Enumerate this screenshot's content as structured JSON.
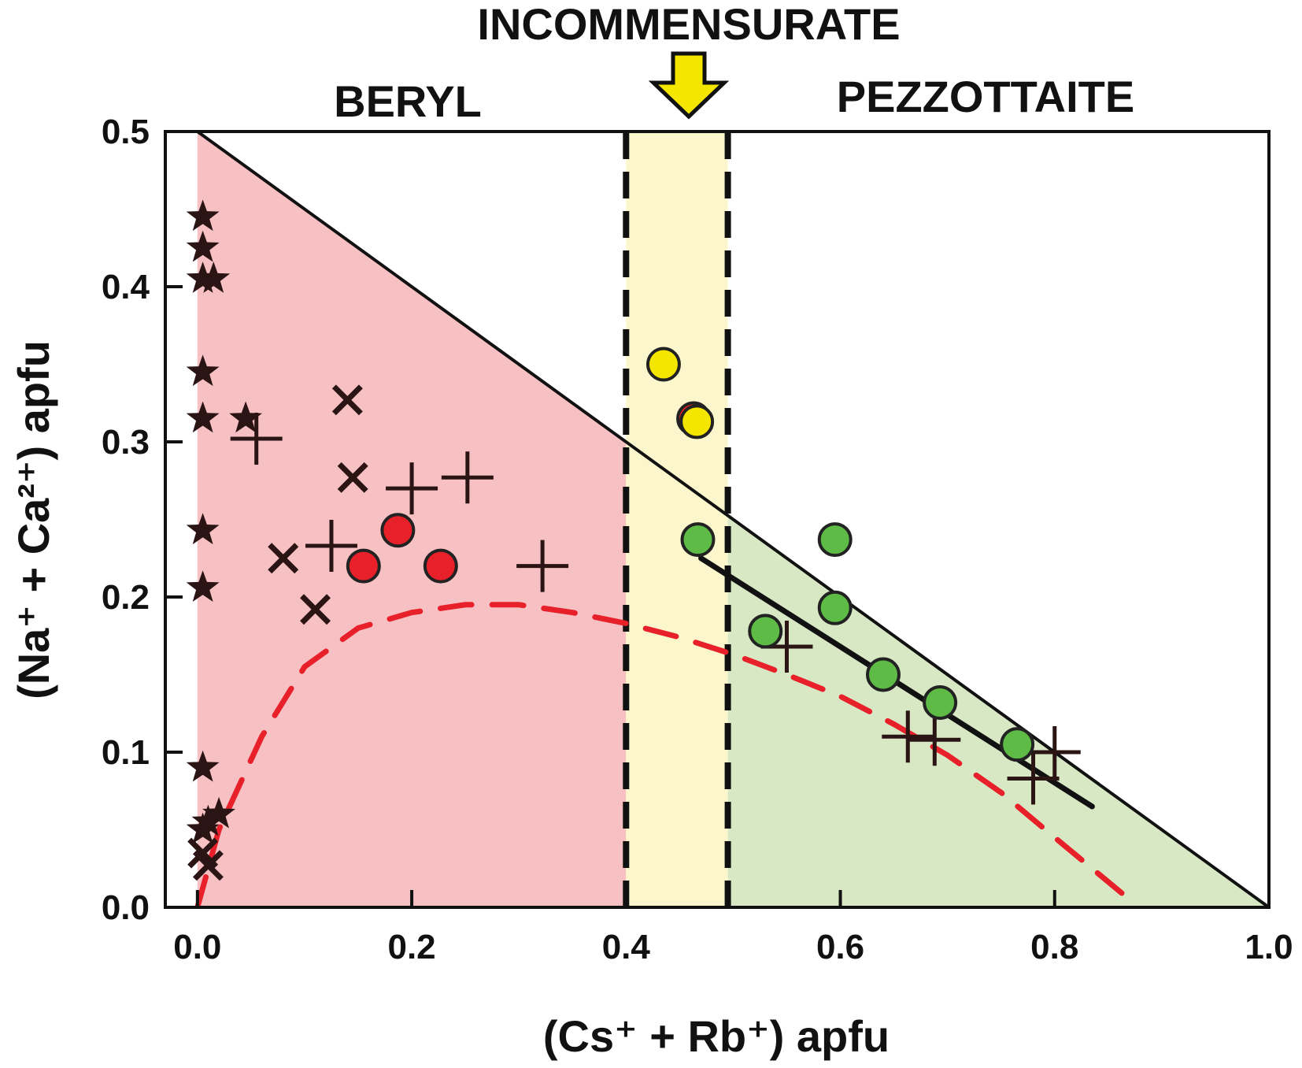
{
  "chart_data": {
    "type": "scatter",
    "title": "",
    "xlabel": "(Cs⁺ + Rb⁺)  apfu",
    "ylabel": "(Na⁺ + Ca²⁺)  apfu",
    "xlim": [
      -0.03,
      1.0
    ],
    "ylim": [
      0.0,
      0.5
    ],
    "x_ticks": [
      "0.0",
      "0.2",
      "0.4",
      "0.6",
      "0.8",
      "1.0"
    ],
    "y_ticks": [
      "0.0",
      "0.1",
      "0.2",
      "0.3",
      "0.4",
      "0.5"
    ],
    "grid": false,
    "regions": [
      {
        "name": "BERYL",
        "x_range": [
          0.0,
          0.4
        ],
        "color": "#f7c0c3"
      },
      {
        "name": "INCOMMENSURATE",
        "x_range": [
          0.4,
          0.495
        ],
        "color": "#fbf6cc"
      },
      {
        "name": "PEZZOTTAITE",
        "x_range": [
          0.495,
          1.0
        ],
        "color": "#d8e8c4"
      }
    ],
    "colors": {
      "beryl_fill": "#f7c0c3",
      "incommensurate_fill": "#fbf6cc",
      "pezzottaite_fill": "#d8e8c4",
      "red_points": "#e8202a",
      "yellow_points": "#f5e600",
      "green_points": "#5dbb46",
      "dashed_curve": "#e8202a",
      "marker_dark": "#2a1414"
    },
    "lines": [
      {
        "kind": "boundary",
        "style": "solid",
        "points": [
          [
            0.0,
            0.5
          ],
          [
            1.0,
            0.0
          ]
        ]
      },
      {
        "kind": "trend",
        "style": "solid-thick",
        "points": [
          [
            0.47,
            0.225
          ],
          [
            0.835,
            0.065
          ]
        ]
      },
      {
        "kind": "boundary",
        "style": "dashed",
        "points": [
          [
            0.4,
            0.0
          ],
          [
            0.4,
            0.5
          ]
        ]
      },
      {
        "kind": "boundary",
        "style": "dashed",
        "points": [
          [
            0.495,
            0.0
          ],
          [
            0.495,
            0.5
          ]
        ]
      },
      {
        "kind": "trend",
        "style": "dashed-red",
        "points": [
          [
            0.0,
            0.0
          ],
          [
            0.02,
            0.05
          ],
          [
            0.06,
            0.11
          ],
          [
            0.1,
            0.155
          ],
          [
            0.15,
            0.18
          ],
          [
            0.2,
            0.19
          ],
          [
            0.25,
            0.195
          ],
          [
            0.3,
            0.195
          ],
          [
            0.35,
            0.19
          ],
          [
            0.4,
            0.183
          ],
          [
            0.45,
            0.174
          ],
          [
            0.5,
            0.163
          ],
          [
            0.55,
            0.15
          ],
          [
            0.6,
            0.136
          ],
          [
            0.65,
            0.118
          ],
          [
            0.7,
            0.098
          ],
          [
            0.75,
            0.074
          ],
          [
            0.8,
            0.045
          ],
          [
            0.87,
            0.005
          ]
        ]
      }
    ],
    "series": [
      {
        "marker": "star",
        "points": [
          [
            0.005,
            0.445
          ],
          [
            0.005,
            0.425
          ],
          [
            0.005,
            0.405
          ],
          [
            0.015,
            0.405
          ],
          [
            0.005,
            0.345
          ],
          [
            0.005,
            0.315
          ],
          [
            0.045,
            0.315
          ],
          [
            0.005,
            0.243
          ],
          [
            0.005,
            0.206
          ],
          [
            0.005,
            0.09
          ],
          [
            0.02,
            0.06
          ],
          [
            0.005,
            0.05
          ],
          [
            0.01,
            0.055
          ]
        ]
      },
      {
        "marker": "x",
        "points": [
          [
            0.14,
            0.327
          ],
          [
            0.145,
            0.277
          ],
          [
            0.08,
            0.225
          ],
          [
            0.11,
            0.192
          ],
          [
            0.005,
            0.035
          ],
          [
            0.01,
            0.027
          ]
        ]
      },
      {
        "marker": "plus",
        "points": [
          [
            0.055,
            0.302
          ],
          [
            0.2,
            0.27
          ],
          [
            0.252,
            0.277
          ],
          [
            0.125,
            0.233
          ],
          [
            0.322,
            0.22
          ],
          [
            0.55,
            0.168
          ],
          [
            0.663,
            0.11
          ],
          [
            0.688,
            0.108
          ],
          [
            0.8,
            0.1
          ],
          [
            0.78,
            0.083
          ]
        ]
      },
      {
        "marker": "circle",
        "color": "red",
        "points": [
          [
            0.155,
            0.22
          ],
          [
            0.187,
            0.243
          ],
          [
            0.227,
            0.22
          ],
          [
            0.463,
            0.315
          ]
        ]
      },
      {
        "marker": "circle",
        "color": "yellow",
        "points": [
          [
            0.435,
            0.35
          ],
          [
            0.466,
            0.313
          ]
        ]
      },
      {
        "marker": "circle",
        "color": "green",
        "points": [
          [
            0.467,
            0.237
          ],
          [
            0.595,
            0.237
          ],
          [
            0.595,
            0.193
          ],
          [
            0.53,
            0.178
          ],
          [
            0.64,
            0.15
          ],
          [
            0.693,
            0.132
          ],
          [
            0.765,
            0.105
          ]
        ]
      }
    ]
  }
}
